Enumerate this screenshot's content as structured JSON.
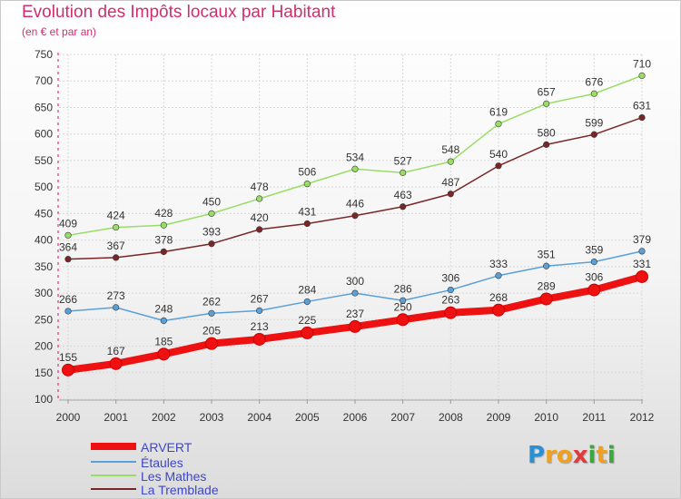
{
  "title": "Evolution des Impôts locaux par Habitant",
  "subtitle": "(en € et par an)",
  "logo": {
    "letters": [
      "P",
      "r",
      "o",
      "x",
      "i",
      "t",
      "i"
    ],
    "colors": [
      "#2b8fd6",
      "#f0a020",
      "#f0a020",
      "#e03a3a",
      "#3aa83a",
      "#f0a020",
      "#3aa83a"
    ]
  },
  "chart_data": {
    "type": "line",
    "title": "Evolution des Impôts locaux par Habitant",
    "subtitle": "(en € et par an)",
    "x": [
      "2000",
      "2001",
      "2002",
      "2003",
      "2004",
      "2005",
      "2006",
      "2007",
      "2008",
      "2009",
      "2010",
      "2011",
      "2012"
    ],
    "ylim": [
      100,
      750
    ],
    "yticks": [
      100,
      150,
      200,
      250,
      300,
      350,
      400,
      450,
      500,
      550,
      600,
      650,
      700,
      750
    ],
    "grid": true,
    "legend_placement": "bottom-left",
    "series": [
      {
        "name": "ARVERT",
        "color": "#ee1111",
        "values": [
          155,
          167,
          185,
          205,
          213,
          225,
          237,
          250,
          263,
          268,
          289,
          306,
          331
        ]
      },
      {
        "name": "Étaules",
        "color": "#5aa0d8",
        "values": [
          266,
          273,
          248,
          262,
          267,
          284,
          300,
          286,
          306,
          333,
          351,
          359,
          379
        ]
      },
      {
        "name": "Les Mathes",
        "color": "#99dd66",
        "values": [
          409,
          424,
          428,
          450,
          478,
          506,
          534,
          527,
          548,
          619,
          657,
          676,
          710
        ]
      },
      {
        "name": "La Tremblade",
        "color": "#7a2626",
        "values": [
          364,
          367,
          378,
          393,
          420,
          431,
          446,
          463,
          487,
          540,
          580,
          599,
          631
        ]
      }
    ]
  }
}
